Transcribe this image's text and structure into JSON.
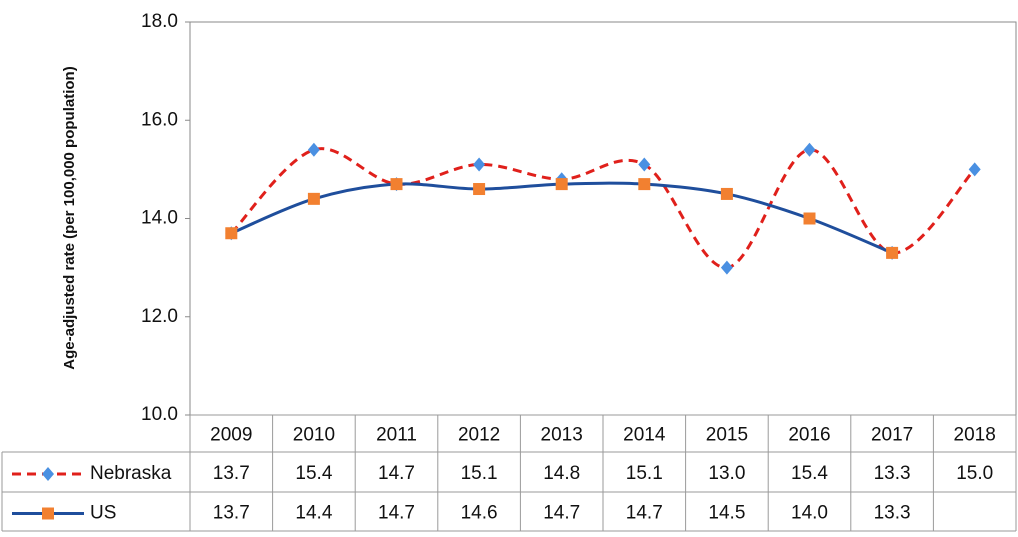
{
  "chart_data": {
    "type": "line",
    "y_label": "Age-adjusted rate (per 100,000 population)",
    "categories": [
      "2009",
      "2010",
      "2011",
      "2012",
      "2013",
      "2014",
      "2015",
      "2016",
      "2017",
      "2018"
    ],
    "series": [
      {
        "name": "Nebraska",
        "color": "#e0201b",
        "marker_color": "#4a90e2",
        "dashed": true,
        "marker": "diamond",
        "values": [
          13.7,
          15.4,
          14.7,
          15.1,
          14.8,
          15.1,
          13.0,
          15.4,
          13.3,
          15.0
        ],
        "value_labels": [
          "13.7",
          "15.4",
          "14.7",
          "15.1",
          "14.8",
          "15.1",
          "13.0",
          "15.4",
          "13.3",
          "15.0"
        ]
      },
      {
        "name": "US",
        "color": "#1f4e9c",
        "marker_color": "#f28030",
        "dashed": false,
        "marker": "square",
        "values": [
          13.7,
          14.4,
          14.7,
          14.6,
          14.7,
          14.7,
          14.5,
          14.0,
          13.3,
          null
        ],
        "value_labels": [
          "13.7",
          "14.4",
          "14.7",
          "14.6",
          "14.7",
          "14.7",
          "14.5",
          "14.0",
          "13.3",
          null
        ]
      }
    ],
    "ylim": [
      10,
      18
    ],
    "yticks": [
      {
        "value": 10,
        "label": "10.0"
      },
      {
        "value": 12,
        "label": "12.0"
      },
      {
        "value": 14,
        "label": "14.0"
      },
      {
        "value": 16,
        "label": "16.0"
      },
      {
        "value": 18,
        "label": "18.0"
      }
    ],
    "grid": false
  }
}
